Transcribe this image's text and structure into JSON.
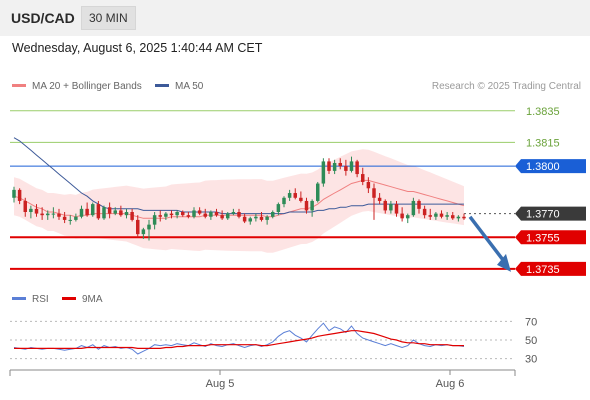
{
  "header": {
    "symbol": "USD/CAD",
    "timeframe": "30 MIN",
    "datetime": "Wednesday, August 6, 2025 1:40:44 AM CET"
  },
  "legend": {
    "ma20_label": "MA 20 + Bollinger Bands",
    "ma50_label": "MA 50",
    "copyright": "Research © 2025 Trading Central",
    "rsi_label": "RSI",
    "rsi_ma_label": "9MA"
  },
  "colors": {
    "bull_candle": "#2e8b57",
    "bear_candle": "#cc2222",
    "ma20": "#f08080",
    "ma50": "#3d5a99",
    "bollinger_fill": "#fde3e3",
    "resistance_green": "#9acd6a",
    "level_blue": "#1a5fd6",
    "support_red": "#e00000",
    "current_price": "#3a3a3a",
    "rsi": "#5b7fd6",
    "rsi_ma": "#e00000",
    "arrow": "#3a6fb0"
  },
  "chart_data": [
    {
      "type": "candlestick",
      "title": "USD/CAD",
      "timeframe": "30 MIN",
      "x_ticks": [
        "Aug 5",
        "Aug 6"
      ],
      "ylim": [
        1.3728,
        1.3845
      ],
      "levels": [
        {
          "value": 1.3835,
          "label": "1.3835",
          "style": "resistance"
        },
        {
          "value": 1.3815,
          "label": "1.3815",
          "style": "resistance"
        },
        {
          "value": 1.38,
          "label": "1.3800",
          "style": "pivot"
        },
        {
          "value": 1.377,
          "label": "1.3770",
          "style": "current"
        },
        {
          "value": 1.3755,
          "label": "1.3755",
          "style": "support"
        },
        {
          "value": 1.3735,
          "label": "1.3735",
          "style": "support"
        }
      ],
      "projection": {
        "from": 1.3768,
        "to": 1.3735,
        "direction": "down"
      },
      "candles": [
        [
          1.378,
          1.3787,
          1.3777,
          1.3785
        ],
        [
          1.3785,
          1.3786,
          1.3776,
          1.3778
        ],
        [
          1.3778,
          1.378,
          1.3768,
          1.3771
        ],
        [
          1.3771,
          1.3775,
          1.3767,
          1.3773
        ],
        [
          1.3773,
          1.3776,
          1.3768,
          1.377
        ],
        [
          1.377,
          1.3774,
          1.3766,
          1.3769
        ],
        [
          1.3769,
          1.3772,
          1.3766,
          1.377
        ],
        [
          1.377,
          1.3774,
          1.3767,
          1.377
        ],
        [
          1.377,
          1.3773,
          1.3766,
          1.3768
        ],
        [
          1.3768,
          1.3771,
          1.3764,
          1.3766
        ],
        [
          1.3766,
          1.3769,
          1.3763,
          1.3766
        ],
        [
          1.3766,
          1.377,
          1.3765,
          1.3768
        ],
        [
          1.3768,
          1.3775,
          1.3767,
          1.3773
        ],
        [
          1.3773,
          1.3777,
          1.3768,
          1.3769
        ],
        [
          1.3769,
          1.3777,
          1.3768,
          1.3776
        ],
        [
          1.3776,
          1.3778,
          1.3766,
          1.3767
        ],
        [
          1.3767,
          1.3775,
          1.3766,
          1.3774
        ],
        [
          1.3774,
          1.3777,
          1.3767,
          1.377
        ],
        [
          1.377,
          1.3774,
          1.3769,
          1.3772
        ],
        [
          1.3772,
          1.3775,
          1.3768,
          1.3769
        ],
        [
          1.3769,
          1.3773,
          1.3767,
          1.3771
        ],
        [
          1.3771,
          1.3773,
          1.3765,
          1.3766
        ],
        [
          1.3766,
          1.3769,
          1.3755,
          1.3757
        ],
        [
          1.3757,
          1.3761,
          1.3754,
          1.376
        ],
        [
          1.376,
          1.3766,
          1.3753,
          1.3763
        ],
        [
          1.3763,
          1.3771,
          1.376,
          1.3769
        ],
        [
          1.3769,
          1.3772,
          1.3765,
          1.3768
        ],
        [
          1.3768,
          1.3771,
          1.3766,
          1.377
        ],
        [
          1.377,
          1.3772,
          1.3767,
          1.3769
        ],
        [
          1.3769,
          1.3772,
          1.3767,
          1.3771
        ],
        [
          1.3771,
          1.3772,
          1.3768,
          1.3769
        ],
        [
          1.3769,
          1.3771,
          1.3767,
          1.3768
        ],
        [
          1.3768,
          1.3774,
          1.3767,
          1.3772
        ],
        [
          1.3772,
          1.3774,
          1.3769,
          1.377
        ],
        [
          1.377,
          1.3773,
          1.3767,
          1.3768
        ],
        [
          1.3768,
          1.3772,
          1.3766,
          1.3771
        ],
        [
          1.3771,
          1.3773,
          1.3768,
          1.3769
        ],
        [
          1.3769,
          1.3772,
          1.3766,
          1.3767
        ],
        [
          1.3767,
          1.3771,
          1.3766,
          1.377
        ],
        [
          1.377,
          1.3773,
          1.3769,
          1.3771
        ],
        [
          1.3771,
          1.3773,
          1.3767,
          1.3768
        ],
        [
          1.3768,
          1.377,
          1.3764,
          1.3765
        ],
        [
          1.3765,
          1.3768,
          1.3763,
          1.3767
        ],
        [
          1.3767,
          1.377,
          1.3765,
          1.3768
        ],
        [
          1.3768,
          1.3771,
          1.3765,
          1.3766
        ],
        [
          1.3766,
          1.3769,
          1.3763,
          1.3768
        ],
        [
          1.3768,
          1.3772,
          1.3767,
          1.3771
        ],
        [
          1.3771,
          1.3777,
          1.3769,
          1.3776
        ],
        [
          1.3776,
          1.3781,
          1.3774,
          1.378
        ],
        [
          1.378,
          1.3785,
          1.3778,
          1.3783
        ],
        [
          1.3783,
          1.3786,
          1.3779,
          1.378
        ],
        [
          1.378,
          1.3784,
          1.3777,
          1.3778
        ],
        [
          1.3778,
          1.378,
          1.377,
          1.3772
        ],
        [
          1.3772,
          1.3779,
          1.3768,
          1.3778
        ],
        [
          1.3778,
          1.379,
          1.3777,
          1.3789
        ],
        [
          1.3789,
          1.3805,
          1.3787,
          1.3803
        ],
        [
          1.3803,
          1.3805,
          1.3795,
          1.3797
        ],
        [
          1.3797,
          1.3804,
          1.3795,
          1.3802
        ],
        [
          1.3802,
          1.3805,
          1.3798,
          1.38
        ],
        [
          1.38,
          1.3804,
          1.3794,
          1.3797
        ],
        [
          1.3797,
          1.3806,
          1.3796,
          1.3803
        ],
        [
          1.3803,
          1.3804,
          1.3793,
          1.3795
        ],
        [
          1.3795,
          1.3799,
          1.3788,
          1.379
        ],
        [
          1.379,
          1.3793,
          1.3783,
          1.3786
        ],
        [
          1.3786,
          1.3789,
          1.3766,
          1.378
        ],
        [
          1.378,
          1.3783,
          1.3776,
          1.3778
        ],
        [
          1.3778,
          1.3779,
          1.377,
          1.3772
        ],
        [
          1.3772,
          1.3778,
          1.377,
          1.3776
        ],
        [
          1.3776,
          1.3778,
          1.3768,
          1.377
        ],
        [
          1.377,
          1.3774,
          1.3765,
          1.3767
        ],
        [
          1.3767,
          1.377,
          1.3764,
          1.3769
        ],
        [
          1.3769,
          1.378,
          1.3768,
          1.3778
        ],
        [
          1.3778,
          1.3779,
          1.377,
          1.3773
        ],
        [
          1.3773,
          1.3775,
          1.3767,
          1.3769
        ],
        [
          1.3769,
          1.3773,
          1.3766,
          1.3768
        ],
        [
          1.3768,
          1.3771,
          1.3766,
          1.377
        ],
        [
          1.377,
          1.3772,
          1.3767,
          1.3768
        ],
        [
          1.3768,
          1.3771,
          1.3766,
          1.3769
        ],
        [
          1.3769,
          1.3771,
          1.3766,
          1.3767
        ],
        [
          1.3767,
          1.3769,
          1.3765,
          1.3768
        ],
        [
          1.3768,
          1.377,
          1.3766,
          1.3767
        ]
      ],
      "series": [
        {
          "name": "MA 20",
          "values": [
            1.3781,
            1.378,
            1.3778,
            1.3776,
            1.3774,
            1.3773,
            1.3771,
            1.3771,
            1.377,
            1.3769,
            1.3769,
            1.3768,
            1.3769,
            1.3769,
            1.377,
            1.377,
            1.377,
            1.377,
            1.377,
            1.377,
            1.377,
            1.3769,
            1.3768,
            1.3767,
            1.3767,
            1.3767,
            1.3767,
            1.3767,
            1.3768,
            1.3768,
            1.3768,
            1.3768,
            1.3768,
            1.3768,
            1.3769,
            1.3769,
            1.3769,
            1.3769,
            1.3769,
            1.3769,
            1.3769,
            1.3769,
            1.3769,
            1.3769,
            1.3769,
            1.3768,
            1.3768,
            1.3769,
            1.377,
            1.3771,
            1.3772,
            1.3773,
            1.3773,
            1.3774,
            1.3776,
            1.3779,
            1.3781,
            1.3783,
            1.3785,
            1.3787,
            1.3789,
            1.379,
            1.3791,
            1.3791,
            1.379,
            1.3789,
            1.3788,
            1.3787,
            1.3786,
            1.3785,
            1.3784,
            1.3784,
            1.3783,
            1.3782,
            1.3781,
            1.378,
            1.3779,
            1.3778,
            1.3777,
            1.3776,
            1.3775
          ]
        },
        {
          "name": "MA 50",
          "values": [
            1.3818,
            1.3816,
            1.3813,
            1.381,
            1.3807,
            1.3804,
            1.3801,
            1.3798,
            1.3795,
            1.3792,
            1.3789,
            1.3786,
            1.3783,
            1.3781,
            1.3778,
            1.3776,
            1.3774,
            1.3773,
            1.3773,
            1.3773,
            1.3773,
            1.3773,
            1.3773,
            1.3772,
            1.3772,
            1.3772,
            1.3772,
            1.3772,
            1.3772,
            1.3772,
            1.3771,
            1.3771,
            1.3771,
            1.3771,
            1.3771,
            1.3771,
            1.3771,
            1.377,
            1.377,
            1.377,
            1.377,
            1.377,
            1.377,
            1.377,
            1.377,
            1.377,
            1.377,
            1.377,
            1.377,
            1.3771,
            1.3771,
            1.3771,
            1.3771,
            1.3771,
            1.3772,
            1.3772,
            1.3773,
            1.3773,
            1.3774,
            1.3774,
            1.3775,
            1.3775,
            1.3775,
            1.3776,
            1.3776,
            1.3776,
            1.3776,
            1.3776,
            1.3776,
            1.3776,
            1.3776,
            1.3776,
            1.3776,
            1.3776,
            1.3776,
            1.3776,
            1.3776,
            1.3776,
            1.3776,
            1.3776,
            1.3776
          ]
        }
      ],
      "bollinger_width": 0.0012
    },
    {
      "type": "line",
      "title": "RSI",
      "ylim": [
        20,
        80
      ],
      "y_ticks": [
        30,
        50,
        70
      ],
      "series": [
        {
          "name": "RSI",
          "values": [
            42,
            41,
            40,
            42,
            41,
            40,
            41,
            41,
            40,
            39,
            40,
            41,
            44,
            42,
            45,
            40,
            44,
            42,
            43,
            41,
            42,
            40,
            35,
            38,
            41,
            45,
            44,
            45,
            44,
            46,
            45,
            44,
            47,
            45,
            43,
            46,
            44,
            43,
            45,
            46,
            44,
            42,
            44,
            45,
            43,
            45,
            48,
            54,
            58,
            60,
            55,
            52,
            48,
            55,
            62,
            68,
            60,
            64,
            62,
            58,
            65,
            57,
            52,
            50,
            48,
            46,
            44,
            46,
            44,
            42,
            44,
            50,
            46,
            44,
            43,
            45,
            44,
            45,
            44,
            44,
            43
          ]
        },
        {
          "name": "9MA",
          "values": [
            41,
            41,
            41,
            41,
            41,
            41,
            41,
            41,
            41,
            41,
            41,
            41,
            41,
            42,
            42,
            42,
            42,
            42,
            42,
            42,
            42,
            42,
            41,
            41,
            41,
            41,
            41,
            42,
            42,
            43,
            43,
            44,
            44,
            44,
            44,
            45,
            45,
            45,
            45,
            45,
            45,
            45,
            45,
            45,
            44,
            44,
            45,
            46,
            47,
            48,
            49,
            50,
            51,
            52,
            54,
            55,
            56,
            57,
            58,
            59,
            60,
            60,
            59,
            58,
            57,
            55,
            53,
            51,
            50,
            48,
            47,
            47,
            46,
            46,
            45,
            45,
            45,
            45,
            44,
            44,
            44
          ]
        }
      ]
    }
  ]
}
